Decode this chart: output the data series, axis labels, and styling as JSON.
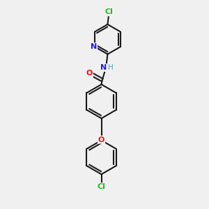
{
  "background_color": "#f0f0f0",
  "bond_color": "#1a1a1a",
  "bond_width": 1.5,
  "atom_colors": {
    "Cl": "#22bb22",
    "N": "#1a1aee",
    "O": "#ee1111",
    "NH": "#44aaaa",
    "C": "#1a1a1a"
  },
  "figsize": [
    3.0,
    3.0
  ],
  "dpi": 100
}
